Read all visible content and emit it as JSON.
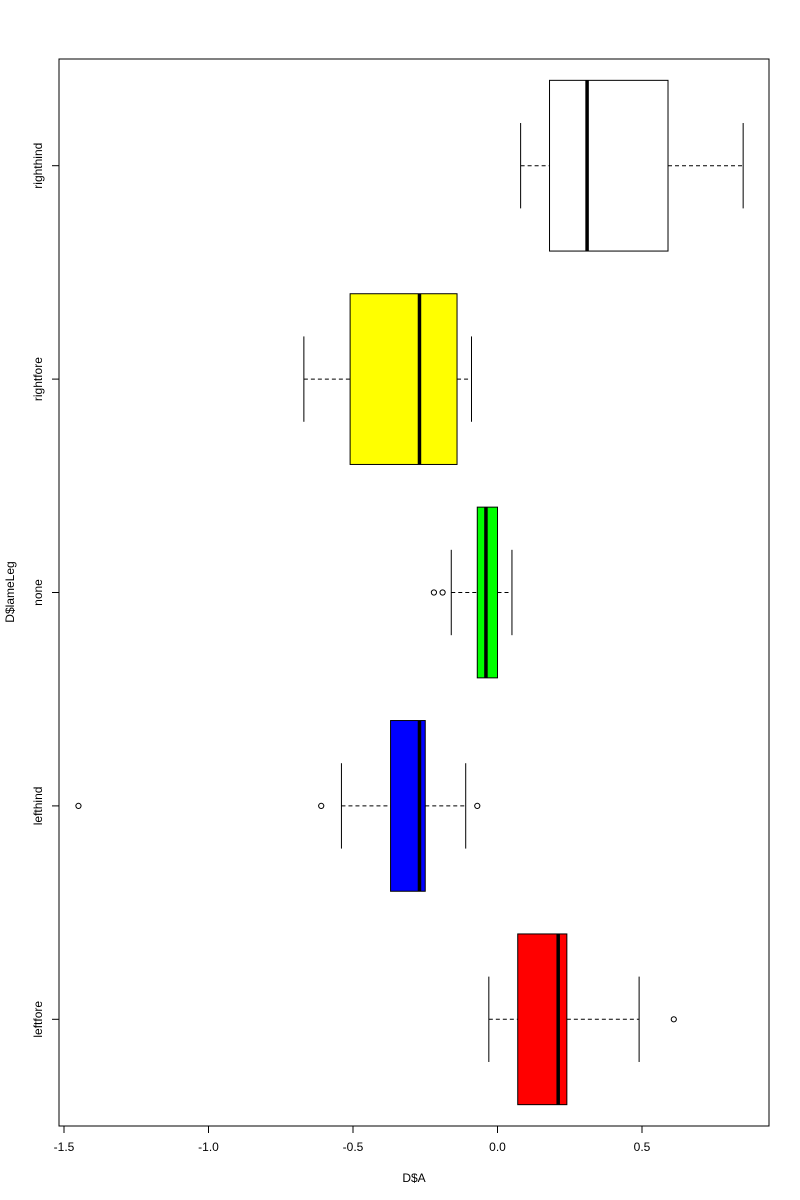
{
  "chart_data": {
    "type": "boxplot",
    "orientation": "horizontal",
    "title": "",
    "xlabel": "D$A",
    "ylabel": "D$lameLeg",
    "xlim": [
      -1.5,
      0.92
    ],
    "x_ticks": [
      -1.5,
      -1.0,
      -0.5,
      0.0,
      0.5
    ],
    "x_tick_labels": [
      "-1.5",
      "-1.0",
      "-0.5",
      "0.0",
      "0.5"
    ],
    "grid": false,
    "legend": "none",
    "categories": [
      "leftfore",
      "lefthind",
      "none",
      "rightfore",
      "righthind"
    ],
    "series": [
      {
        "category": "leftfore",
        "color": "#ff0000",
        "whisker_low": -0.03,
        "q1": 0.07,
        "median": 0.21,
        "q3": 0.24,
        "whisker_high": 0.49,
        "outliers": [
          0.61
        ]
      },
      {
        "category": "lefthind",
        "color": "#0000ff",
        "whisker_low": -0.54,
        "q1": -0.37,
        "median": -0.27,
        "q3": -0.25,
        "whisker_high": -0.11,
        "outliers": [
          -1.45,
          -0.61,
          -0.07
        ]
      },
      {
        "category": "none",
        "color": "#00ff00",
        "whisker_low": -0.16,
        "q1": -0.07,
        "median": -0.04,
        "q3": 0.0,
        "whisker_high": 0.05,
        "outliers": [
          -0.22,
          -0.19
        ]
      },
      {
        "category": "rightfore",
        "color": "#ffff00",
        "whisker_low": -0.67,
        "q1": -0.51,
        "median": -0.27,
        "q3": -0.14,
        "whisker_high": -0.09,
        "outliers": []
      },
      {
        "category": "righthind",
        "color": "#ffffff",
        "whisker_low": 0.08,
        "q1": 0.18,
        "median": 0.31,
        "q3": 0.59,
        "whisker_high": 0.85,
        "outliers": []
      }
    ]
  }
}
